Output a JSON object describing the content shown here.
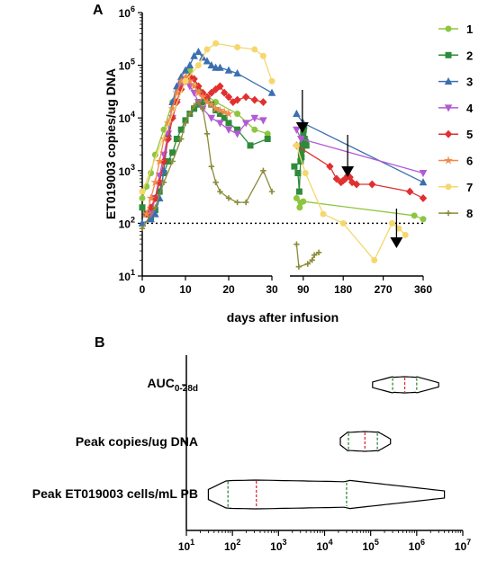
{
  "chart_data": [
    {
      "panel": "A",
      "type": "line",
      "ylabel": "ET019003 copies/ug DNA",
      "xlabel": "days after infusion",
      "y_scale": "log",
      "ylim": [
        10,
        1000000
      ],
      "y_ticks": [
        "10^1",
        "10^2",
        "10^3",
        "10^4",
        "10^5",
        "10^6"
      ],
      "x_segments": [
        {
          "range": [
            0,
            30
          ],
          "ticks": [
            "0",
            "10",
            "20",
            "30"
          ]
        },
        {
          "range": [
            60,
            360
          ],
          "ticks": [
            "90",
            "180",
            "270",
            "360"
          ]
        }
      ],
      "reference_line_y": 100,
      "arrows_x": [
        88,
        190,
        300
      ],
      "series": [
        {
          "name": "1",
          "color": "#8dc63f",
          "marker": "circle",
          "x": [
            0,
            1,
            2,
            3,
            5,
            7,
            9,
            11,
            13,
            17,
            22,
            26,
            29,
            75,
            82,
            85,
            90,
            340,
            360
          ],
          "y": [
            300,
            500,
            900,
            2000,
            6000,
            20000,
            50000,
            80000,
            35000,
            20000,
            12000,
            6000,
            5000,
            300,
            200,
            250,
            260,
            140,
            120
          ]
        },
        {
          "name": "2",
          "color": "#2e8b3a",
          "marker": "square",
          "x": [
            0,
            1,
            2,
            3,
            4,
            5,
            6,
            7,
            8,
            9,
            10,
            11,
            12,
            13,
            14,
            15,
            16,
            17,
            18,
            19,
            20,
            22,
            25,
            29,
            70,
            78,
            81,
            84,
            85,
            86,
            87,
            88,
            89,
            90,
            91,
            92,
            93,
            95,
            97
          ],
          "y": [
            200,
            150,
            130,
            180,
            400,
            900,
            1500,
            2200,
            4000,
            6000,
            9000,
            12000,
            15000,
            18000,
            20000,
            22000,
            18000,
            14000,
            12000,
            10000,
            8000,
            6000,
            3000,
            4000,
            1200,
            900,
            400,
            1500,
            2000,
            1800,
            2500,
            3000,
            3500,
            5000,
            6000,
            7000,
            4000,
            3500,
            3000
          ]
        },
        {
          "name": "3",
          "color": "#3a6fb0",
          "marker": "triangle-up",
          "x": [
            0,
            2,
            3,
            4,
            5,
            6,
            7,
            8,
            9,
            10,
            11,
            12,
            13,
            14,
            15,
            16,
            17,
            18,
            20,
            22,
            30,
            75,
            90,
            360
          ],
          "y": [
            100,
            120,
            150,
            300,
            1000,
            5000,
            20000,
            40000,
            60000,
            80000,
            100000,
            150000,
            180000,
            140000,
            120000,
            100000,
            90000,
            90000,
            80000,
            70000,
            30000,
            12000,
            8000,
            600
          ]
        },
        {
          "name": "4",
          "color": "#b25ad3",
          "marker": "triangle-down",
          "x": [
            2,
            3,
            4,
            5,
            6,
            7,
            8,
            9,
            10,
            11,
            12,
            13,
            14,
            16,
            18,
            20,
            22,
            24,
            26,
            28,
            75,
            85,
            360
          ],
          "y": [
            150,
            300,
            800,
            2000,
            5000,
            10000,
            20000,
            40000,
            50000,
            40000,
            30000,
            20000,
            15000,
            10000,
            8000,
            6000,
            5000,
            8000,
            10000,
            9000,
            6000,
            4000,
            900
          ]
        },
        {
          "name": "5",
          "color": "#e03030",
          "marker": "diamond",
          "x": [
            1,
            2,
            3,
            4,
            5,
            6,
            7,
            8,
            9,
            10,
            11,
            12,
            13,
            14,
            15,
            16,
            17,
            18,
            19,
            20,
            21,
            22,
            24,
            26,
            28,
            75,
            150,
            165,
            175,
            180,
            185,
            190,
            195,
            200,
            210,
            245,
            330,
            360
          ],
          "y": [
            150,
            200,
            300,
            600,
            1500,
            4000,
            10000,
            20000,
            35000,
            50000,
            60000,
            55000,
            40000,
            30000,
            25000,
            30000,
            35000,
            40000,
            30000,
            25000,
            20000,
            22000,
            25000,
            22000,
            20000,
            3000,
            1200,
            700,
            600,
            650,
            700,
            800,
            750,
            600,
            550,
            550,
            400,
            300
          ]
        },
        {
          "name": "6",
          "color": "#f08a4b",
          "marker": "star",
          "x": [
            1,
            2,
            3,
            4,
            5,
            6,
            7,
            8,
            9,
            10,
            11,
            12,
            13,
            14,
            15,
            16,
            17,
            18,
            19,
            20
          ],
          "y": [
            150,
            300,
            600,
            1500,
            4000,
            8000,
            15000,
            30000,
            50000,
            60000,
            50000,
            40000,
            30000,
            25000,
            20000,
            18000,
            15000,
            14000,
            13000,
            12000
          ]
        },
        {
          "name": "7",
          "color": "#f5d76e",
          "marker": "circle",
          "x": [
            0,
            10,
            13,
            15,
            17,
            22,
            26,
            28,
            30,
            75,
            95,
            135,
            180,
            250,
            290,
            305,
            320
          ],
          "y": [
            400,
            50000,
            100000,
            200000,
            260000,
            220000,
            200000,
            150000,
            50000,
            3000,
            900,
            150,
            100,
            20,
            100,
            80,
            60
          ]
        },
        {
          "name": "8",
          "color": "#8b8b3a",
          "marker": "plus",
          "x": [
            0,
            3,
            5,
            7,
            9,
            10,
            11,
            12,
            13,
            14,
            15,
            16,
            17,
            18,
            20,
            22,
            24,
            28,
            30,
            75,
            80,
            100,
            110,
            115,
            125
          ],
          "y": [
            80,
            200,
            600,
            1500,
            4000,
            8000,
            12000,
            17000,
            20000,
            15000,
            5000,
            1200,
            600,
            400,
            300,
            250,
            250,
            1000,
            400,
            40,
            15,
            17,
            20,
            25,
            28
          ]
        }
      ],
      "legend_position": "right"
    },
    {
      "panel": "B",
      "type": "violin",
      "x_scale": "log",
      "xlim": [
        10,
        10000000
      ],
      "x_ticks": [
        "10^1",
        "10^2",
        "10^3",
        "10^4",
        "10^5",
        "10^6",
        "10^7"
      ],
      "categories": [
        "AUC_0-28d",
        "Peak copies/ug DNA",
        "Peak ET019003 cells/mL PB"
      ],
      "violins": [
        {
          "category": "AUC_0-28d",
          "min": 110000,
          "max": 3000000,
          "q1": 300000,
          "median": 550000,
          "q3": 1000000
        },
        {
          "category": "Peak copies/ug DNA",
          "min": 22000,
          "max": 270000,
          "q1": 33000,
          "median": 75000,
          "q3": 140000
        },
        {
          "category": "Peak ET019003 cells/mL PB",
          "min": 30,
          "max": 4000000,
          "q1": 80,
          "median": 330,
          "q3": 30000
        }
      ],
      "colors": {
        "median": "#e03030",
        "quartile": "#2e8b3a",
        "outline": "#000000"
      }
    }
  ],
  "text": {
    "panel_a": "A",
    "panel_b": "B",
    "ylabel_a": "ET019003 copies/ug DNA",
    "xlabel_a": "days after infusion",
    "cat_auc_main": "AUC",
    "cat_auc_sub": "0-28d",
    "cat_peak_copies": "Peak copies/ug DNA",
    "cat_peak_cells": "Peak ET019003 cells/mL PB"
  }
}
